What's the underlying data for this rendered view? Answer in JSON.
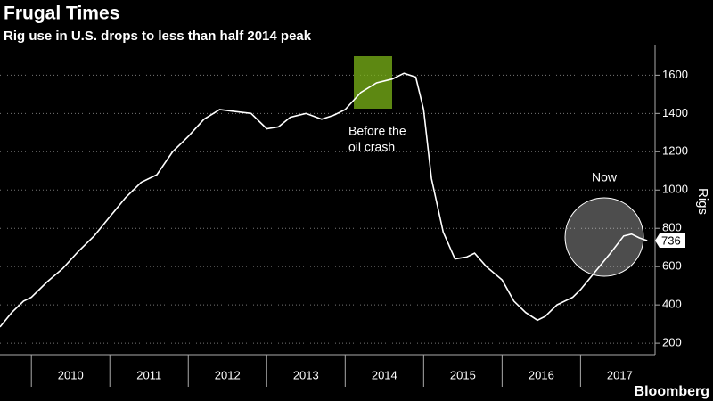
{
  "chart_data": {
    "type": "line",
    "title": "Frugal Times",
    "subtitle": "Rig use in U.S. drops to less than half 2014 peak",
    "y_axis_label": "Rigs",
    "source": "Bloomberg",
    "annotations": [
      "Before the",
      "oil crash",
      "Now"
    ],
    "color": "#ffffff",
    "grid": true,
    "xlim": [
      2009.6,
      2017.95
    ],
    "ylim": [
      140,
      1760
    ],
    "yticks": [
      200,
      400,
      600,
      800,
      1000,
      1200,
      1400,
      1600
    ],
    "xticks": [
      {
        "value": 2010.5,
        "label": "2010"
      },
      {
        "value": 2011.5,
        "label": "2011"
      },
      {
        "value": 2012.5,
        "label": "2012"
      },
      {
        "value": 2013.5,
        "label": "2013"
      },
      {
        "value": 2014.5,
        "label": "2014"
      },
      {
        "value": 2015.5,
        "label": "2015"
      },
      {
        "value": 2016.5,
        "label": "2016"
      },
      {
        "value": 2017.5,
        "label": "2017"
      }
    ],
    "x": [
      2009.6,
      2009.75,
      2009.9,
      2010.0,
      2010.2,
      2010.4,
      2010.6,
      2010.8,
      2011.0,
      2011.2,
      2011.4,
      2011.6,
      2011.8,
      2012.0,
      2012.2,
      2012.4,
      2012.6,
      2012.8,
      2013.0,
      2013.15,
      2013.3,
      2013.5,
      2013.7,
      2013.85,
      2014.0,
      2014.2,
      2014.4,
      2014.6,
      2014.75,
      2014.9,
      2015.0,
      2015.1,
      2015.25,
      2015.4,
      2015.55,
      2015.65,
      2015.8,
      2016.0,
      2016.15,
      2016.3,
      2016.45,
      2016.55,
      2016.7,
      2016.9,
      2017.0,
      2017.2,
      2017.4,
      2017.55,
      2017.65,
      2017.75,
      2017.85
    ],
    "values": [
      285,
      360,
      420,
      440,
      520,
      590,
      680,
      760,
      860,
      960,
      1040,
      1080,
      1200,
      1280,
      1370,
      1420,
      1410,
      1400,
      1320,
      1330,
      1380,
      1400,
      1370,
      1390,
      1420,
      1510,
      1560,
      1580,
      1610,
      1590,
      1420,
      1060,
      780,
      640,
      650,
      670,
      600,
      530,
      420,
      360,
      320,
      340,
      400,
      440,
      480,
      580,
      680,
      760,
      770,
      750,
      736
    ]
  }
}
